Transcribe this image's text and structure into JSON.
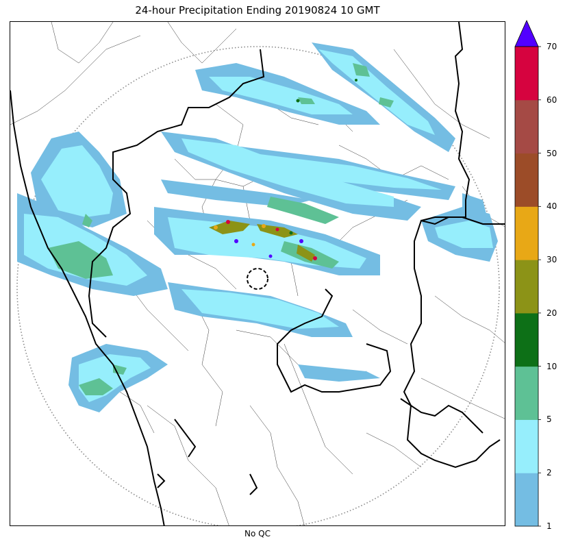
{
  "title": "24-hour Precipitation Ending 20190824 10 GMT",
  "xlabel": "No QC",
  "colorbar": {
    "levels": [
      1,
      2,
      5,
      10,
      20,
      30,
      40,
      50,
      60,
      70
    ],
    "tick_labels": [
      "1",
      "2",
      "5",
      "10",
      "20",
      "30",
      "40",
      "50",
      "60",
      "70"
    ],
    "colors": [
      "#74bde3",
      "#96eefc",
      "#5ec195",
      "#0d7017",
      "#8c9317",
      "#e8a816",
      "#9c4c28",
      "#a54a45",
      "#d6033f"
    ],
    "extend_color": "#5200ff",
    "extend": "max"
  },
  "map": {
    "radar_range_ring": "dotted-circle",
    "radar_site_marker": "dashed-circle",
    "boundary_styles": [
      "state-boundaries-thick",
      "district-boundaries-thin",
      "coastline"
    ]
  }
}
